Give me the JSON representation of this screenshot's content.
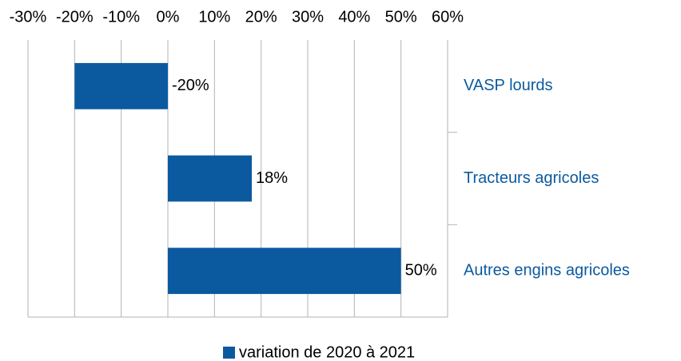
{
  "chart_data": {
    "type": "bar",
    "orientation": "horizontal",
    "categories": [
      "VASP lourds",
      "Tracteurs agricoles",
      "Autres engins agricoles"
    ],
    "series": [
      {
        "name": "variation de 2020 à 2021",
        "color": "#0b5aa0",
        "values": [
          -20,
          18,
          50
        ],
        "value_labels": [
          "-20%",
          "18%",
          "50%"
        ]
      }
    ],
    "xlim": [
      -30,
      60
    ],
    "xticks": [
      {
        "value": -30,
        "label": "-30%"
      },
      {
        "value": -20,
        "label": "-20%"
      },
      {
        "value": -10,
        "label": "-10%"
      },
      {
        "value": 0,
        "label": "0%"
      },
      {
        "value": 10,
        "label": "10%"
      },
      {
        "value": 20,
        "label": "20%"
      },
      {
        "value": 30,
        "label": "30%"
      },
      {
        "value": 40,
        "label": "40%"
      },
      {
        "value": 50,
        "label": "50%"
      },
      {
        "value": 60,
        "label": "60%"
      }
    ],
    "grid": true,
    "legend": "bottom"
  }
}
